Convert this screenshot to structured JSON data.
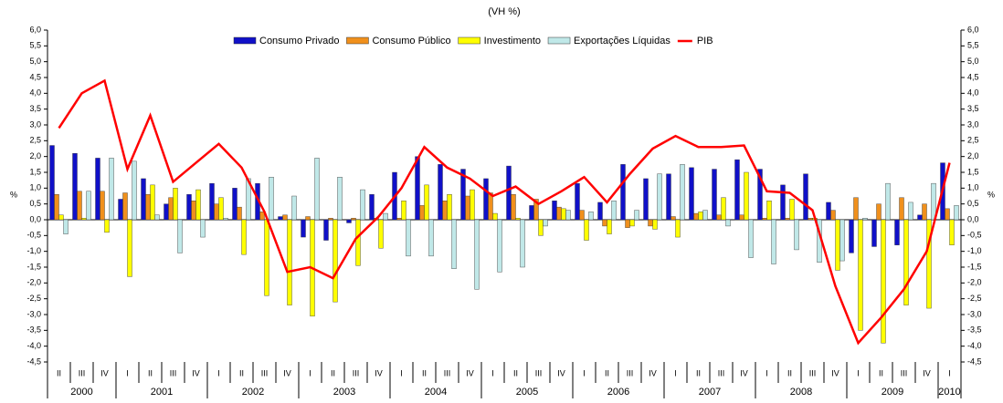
{
  "chart_data": {
    "type": "bar",
    "title": "(VH %)",
    "y_label": "%",
    "y2_label": "%",
    "categories": [
      "II",
      "III",
      "IV",
      "I",
      "II",
      "III",
      "IV",
      "I",
      "II",
      "III",
      "IV",
      "I",
      "II",
      "III",
      "IV",
      "I",
      "II",
      "III",
      "IV",
      "I",
      "II",
      "III",
      "IV",
      "I",
      "II",
      "III",
      "IV",
      "I",
      "II",
      "III",
      "IV",
      "I",
      "II",
      "III",
      "IV",
      "I",
      "II",
      "III",
      "IV",
      "I"
    ],
    "years": [
      "2000",
      "2001",
      "2002",
      "2003",
      "2004",
      "2005",
      "2006",
      "2007",
      "2008",
      "2009",
      "2010"
    ],
    "ylim": [
      -4.5,
      6.0
    ],
    "yticks": [
      {
        "value": -4.5,
        "label": "-4,5"
      },
      {
        "value": -4,
        "label": "-4,0"
      },
      {
        "value": -3.5,
        "label": "-3,5"
      },
      {
        "value": -3,
        "label": "-3,0"
      },
      {
        "value": -2.5,
        "label": "-2,5"
      },
      {
        "value": -2,
        "label": "-2,0"
      },
      {
        "value": -1.5,
        "label": "-1,5"
      },
      {
        "value": -1,
        "label": "-1,0"
      },
      {
        "value": -0.5,
        "label": "-0,5"
      },
      {
        "value": 0,
        "label": "0,0"
      },
      {
        "value": 0.5,
        "label": "0,5"
      },
      {
        "value": 1,
        "label": "1,0"
      },
      {
        "value": 1.5,
        "label": "1,5"
      },
      {
        "value": 2,
        "label": "2,0"
      },
      {
        "value": 2.5,
        "label": "2,5"
      },
      {
        "value": 3,
        "label": "3,0"
      },
      {
        "value": 3.5,
        "label": "3,5"
      },
      {
        "value": 4,
        "label": "4,0"
      },
      {
        "value": 4.5,
        "label": "4,5"
      },
      {
        "value": 5,
        "label": "5,0"
      },
      {
        "value": 5.5,
        "label": "5,5"
      },
      {
        "value": 6,
        "label": "6,0"
      }
    ],
    "y2lim": [
      -4.5,
      6.0
    ],
    "y2ticks": [
      {
        "value": -4.5,
        "label": "-4,5"
      },
      {
        "value": -4,
        "label": "-4,0"
      },
      {
        "value": -3.5,
        "label": "-3,5"
      },
      {
        "value": -3,
        "label": "-3,0"
      },
      {
        "value": -2.5,
        "label": "-2,5"
      },
      {
        "value": -2,
        "label": "-2,0"
      },
      {
        "value": -1.5,
        "label": "-1,5"
      },
      {
        "value": -1,
        "label": "-1,0"
      },
      {
        "value": -0.5,
        "label": "-0,5"
      },
      {
        "value": 0,
        "label": "0,0"
      },
      {
        "value": 0.5,
        "label": "0,5"
      },
      {
        "value": 1,
        "label": "1,0"
      },
      {
        "value": 1.5,
        "label": "1,5"
      },
      {
        "value": 2,
        "label": "2,0"
      },
      {
        "value": 2.5,
        "label": "2,5"
      },
      {
        "value": 3,
        "label": "3,0"
      },
      {
        "value": 3.5,
        "label": "3,5"
      },
      {
        "value": 4,
        "label": "4,0"
      },
      {
        "value": 4.5,
        "label": "4,5"
      },
      {
        "value": 5,
        "label": "5,0"
      },
      {
        "value": 5.5,
        "label": "5,5"
      },
      {
        "value": 6,
        "label": "6,0"
      }
    ],
    "series": [
      {
        "name": "Consumo Privado",
        "type": "bar",
        "color": "#1010c8",
        "values": [
          2.35,
          2.1,
          1.95,
          0.65,
          1.3,
          0.5,
          0.8,
          1.15,
          1.0,
          1.15,
          0.1,
          -0.55,
          -0.65,
          -0.1,
          0.8,
          1.5,
          2.0,
          1.75,
          1.6,
          1.3,
          1.7,
          0.45,
          0.6,
          1.15,
          0.55,
          1.75,
          1.3,
          1.45,
          1.65,
          1.6,
          1.9,
          1.6,
          1.1,
          1.45,
          0.55,
          -1.05,
          -0.85,
          -0.8,
          0.15,
          1.8
        ]
      },
      {
        "name": "Consumo Público",
        "type": "bar",
        "color": "#f0901c",
        "values": [
          0.8,
          0.9,
          0.9,
          0.85,
          0.8,
          0.7,
          0.6,
          0.5,
          0.4,
          0.25,
          0.15,
          0.1,
          0.05,
          0.05,
          0.05,
          0.05,
          0.45,
          0.6,
          0.75,
          0.85,
          0.8,
          0.65,
          0.4,
          0.3,
          -0.2,
          -0.25,
          -0.2,
          0.1,
          0.2,
          0.15,
          0.15,
          0.05,
          0.05,
          0.05,
          0.3,
          0.7,
          0.5,
          0.7,
          0.5,
          0.35
        ]
      },
      {
        "name": "Investimento",
        "type": "bar",
        "color": "#ffff00",
        "values": [
          0.15,
          0.05,
          -0.4,
          -1.8,
          1.1,
          1.0,
          0.95,
          0.7,
          -1.1,
          -2.4,
          -2.7,
          -3.05,
          -2.6,
          -1.45,
          -0.9,
          0.6,
          1.1,
          0.8,
          0.95,
          0.2,
          0.05,
          -0.5,
          0.35,
          -0.65,
          -0.45,
          -0.2,
          -0.3,
          -0.55,
          0.25,
          0.7,
          1.5,
          0.6,
          0.65,
          0.05,
          -1.6,
          -3.5,
          -3.9,
          -2.7,
          -2.8,
          -0.8
        ]
      },
      {
        "name": "Exportações Líquidas",
        "type": "bar",
        "color": "#c0e8e8",
        "values": [
          -0.45,
          0.9,
          1.95,
          1.85,
          0.15,
          -1.05,
          -0.55,
          0.05,
          1.3,
          1.35,
          0.75,
          1.95,
          1.35,
          0.95,
          0.2,
          -1.15,
          -1.15,
          -1.55,
          -2.2,
          -1.65,
          -1.5,
          -0.2,
          0.3,
          0.25,
          0.6,
          0.3,
          1.45,
          1.75,
          0.3,
          -0.2,
          -1.2,
          -1.4,
          -0.95,
          -1.35,
          -1.3,
          0.05,
          1.15,
          0.55,
          1.15,
          0.45
        ]
      },
      {
        "name": "PIB",
        "type": "line",
        "color": "#ff0000",
        "values": [
          2.9,
          4.0,
          4.4,
          1.6,
          3.3,
          1.2,
          1.8,
          2.4,
          1.65,
          0.25,
          -1.65,
          -1.5,
          -1.85,
          -0.6,
          0.1,
          1.0,
          2.3,
          1.65,
          1.3,
          0.75,
          1.05,
          0.5,
          0.9,
          1.35,
          0.55,
          1.45,
          2.25,
          2.65,
          2.3,
          2.3,
          2.35,
          0.9,
          0.85,
          0.3,
          -2.1,
          -3.9,
          -3.1,
          -2.2,
          -1.0,
          1.8
        ]
      }
    ]
  }
}
